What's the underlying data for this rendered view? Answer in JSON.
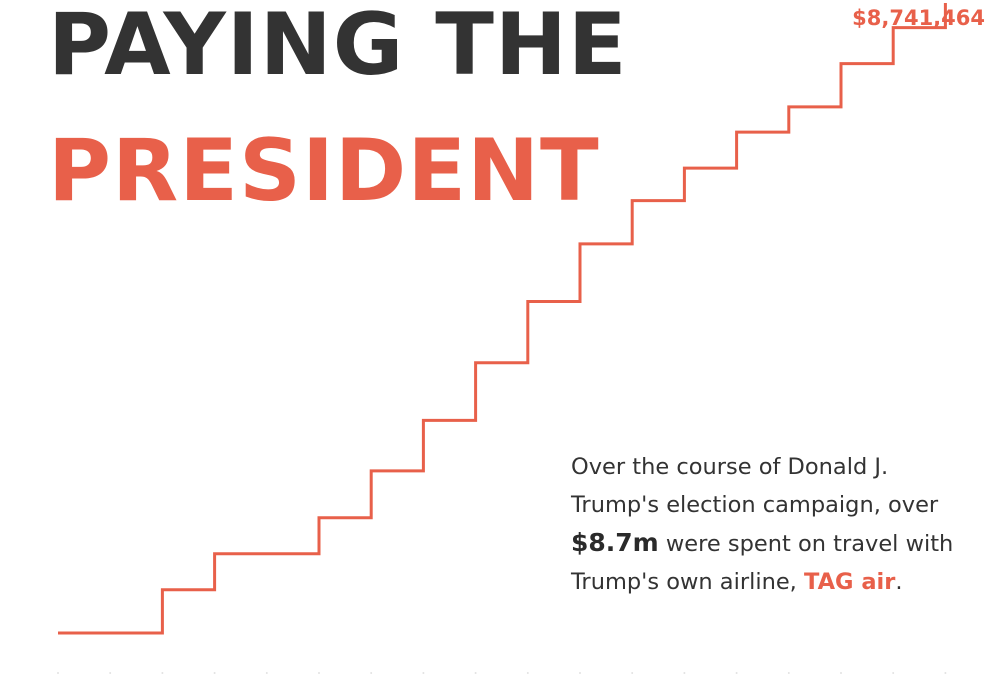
{
  "title": {
    "line1": "PAYING THE",
    "line2": "PRESIDENT"
  },
  "colors": {
    "accent": "#e8604a",
    "text": "#333333",
    "background": "#ffffff"
  },
  "caption": {
    "part1": "Over the course of Donald J. Trump's election campaign, over ",
    "amount": "$8.7m",
    "part2": " were spent on travel with Trump's own airline, ",
    "airline": "TAG air",
    "part3": "."
  },
  "chart_data": {
    "type": "line",
    "step": true,
    "x": [
      0,
      1,
      2,
      3,
      4,
      5,
      6,
      7,
      8,
      9,
      10,
      11,
      12,
      13,
      14,
      15,
      16,
      17
    ],
    "values": [
      0,
      0,
      600000,
      1100000,
      1100000,
      1600000,
      2250000,
      2950000,
      3750000,
      4600000,
      5400000,
      6000000,
      6450000,
      6950000,
      7300000,
      7900000,
      8400000,
      8741464
    ],
    "end_label": "$8,741,464",
    "ylim": [
      0,
      8741464
    ],
    "grid": false,
    "axes": false
  }
}
